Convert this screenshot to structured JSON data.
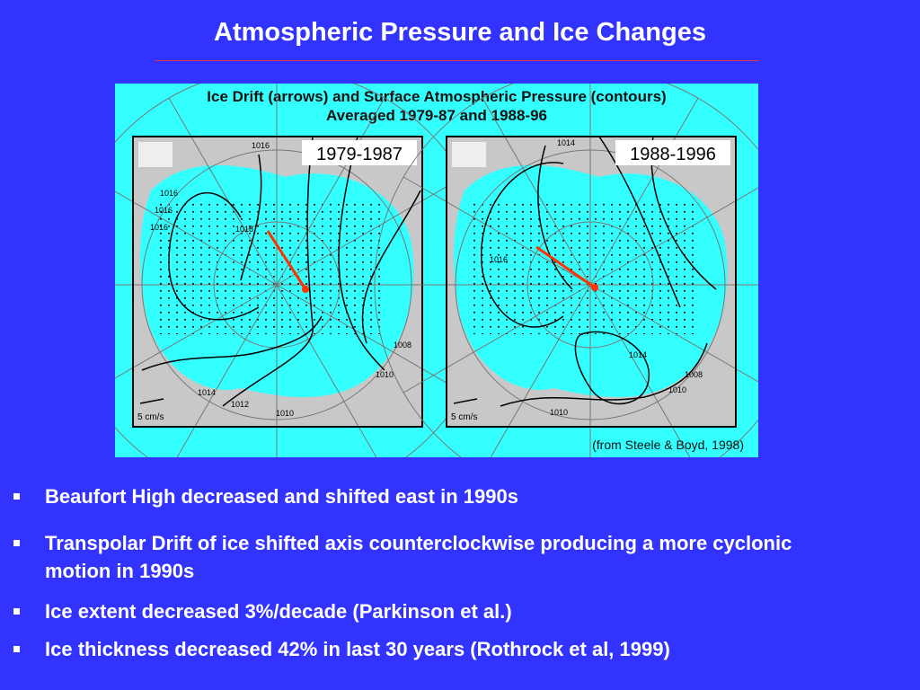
{
  "header": {
    "title": "Atmospheric Pressure and Ice Changes"
  },
  "figure": {
    "title_lines": [
      "Ice Drift (arrows) and Surface Atmospheric Pressure (contours)",
      "Averaged 1979-87 and 1988-96"
    ],
    "panels": [
      {
        "label": "1979-1987",
        "scale": "5 cm/s",
        "contours": [
          "1016",
          "1016",
          "1016",
          "1016",
          "1018",
          "1008",
          "1010",
          "1014",
          "1012",
          "1010"
        ]
      },
      {
        "label": "1988-1996",
        "scale": "5 cm/s",
        "contours": [
          "1014",
          "1016",
          "1014",
          "1008",
          "1010",
          "1010"
        ]
      }
    ],
    "credit": "(from Steele & Boyd, 1998)"
  },
  "bullets": [
    "Beaufort High decreased and shifted east in 1990s",
    "Transpolar Drift of ice shifted axis counterclockwise producing a more cyclonic motion in 1990s",
    "Ice extent decreased 3%/decade (Parkinson et al.)",
    "Ice thickness decreased 42% in last 30 years (Rothrock et al, 1999)"
  ]
}
